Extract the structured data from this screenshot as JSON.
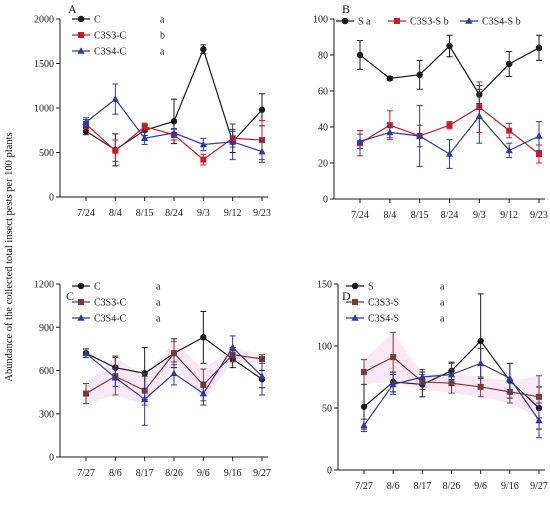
{
  "figure": {
    "ylabel": "Abundance of the collected total insect pests per 100 plants"
  },
  "colors": {
    "black": "#1a1a1a",
    "red": "#c0202a",
    "blue": "#2d3a9e",
    "brown": "#7a3b33",
    "pink_shade": "#f6d6ee"
  },
  "chart_data": [
    {
      "type": "line",
      "panel_label": "A",
      "categories": [
        "7/24",
        "8/4",
        "8/15",
        "8/24",
        "9/3",
        "9/12",
        "9/23"
      ],
      "ylim": [
        0,
        2000
      ],
      "yticks": [
        0,
        500,
        1000,
        1500,
        2000
      ],
      "legend_position": "top-left",
      "series": [
        {
          "name": "C",
          "letter": "a",
          "color": "#1a1a1a",
          "marker": "circle",
          "values": [
            740,
            530,
            750,
            850,
            1660,
            620,
            980
          ],
          "errors": [
            40,
            180,
            60,
            250,
            50,
            120,
            180
          ]
        },
        {
          "name": "C3S3-C",
          "letter": "b",
          "color": "#c0202a",
          "marker": "square",
          "values": [
            820,
            520,
            790,
            700,
            420,
            660,
            640
          ],
          "errors": [
            50,
            120,
            40,
            60,
            60,
            100,
            220
          ]
        },
        {
          "name": "C3S4-C",
          "letter": "a",
          "color": "#2d3a9e",
          "marker": "triangle",
          "values": [
            840,
            1100,
            660,
            720,
            590,
            620,
            510
          ],
          "errors": [
            50,
            170,
            70,
            50,
            70,
            200,
            120
          ]
        }
      ]
    },
    {
      "type": "line",
      "panel_label": "B",
      "categories": [
        "7/24",
        "8/4",
        "8/15",
        "8/24",
        "9/3",
        "9/12",
        "9/23"
      ],
      "ylim": [
        0,
        100
      ],
      "yticks": [
        0,
        20,
        40,
        60,
        80,
        100
      ],
      "legend_position": "top",
      "series": [
        {
          "name": "S",
          "letter": "a",
          "color": "#1a1a1a",
          "marker": "circle",
          "values": [
            80,
            67,
            69,
            85,
            58,
            75,
            84
          ],
          "errors": [
            8,
            1,
            8,
            6,
            5,
            7,
            7
          ]
        },
        {
          "name": "C3S3-S",
          "letter": "b",
          "color": "#c0202a",
          "marker": "square",
          "values": [
            31,
            41,
            35,
            41,
            51,
            38,
            25
          ],
          "errors": [
            7,
            8,
            6,
            2,
            14,
            4,
            5
          ]
        },
        {
          "name": "C3S4-S",
          "letter": "b",
          "color": "#2d3a9e",
          "marker": "triangle",
          "values": [
            32,
            37,
            35,
            25,
            46,
            27,
            35
          ],
          "errors": [
            4,
            3,
            17,
            8,
            15,
            4,
            8
          ]
        }
      ]
    },
    {
      "type": "line",
      "panel_label": "C",
      "categories": [
        "7/27",
        "8/6",
        "8/17",
        "8/26",
        "9/6",
        "9/16",
        "9/27"
      ],
      "ylim": [
        0,
        1200
      ],
      "yticks": [
        0,
        300,
        600,
        900,
        1200
      ],
      "legend_position": "top-left",
      "series": [
        {
          "name": "C",
          "letter": "a",
          "color": "#1a1a1a",
          "marker": "circle",
          "values": [
            720,
            620,
            580,
            720,
            830,
            680,
            540
          ],
          "errors": [
            30,
            80,
            180,
            100,
            180,
            60,
            60
          ]
        },
        {
          "name": "C3S3-C",
          "letter": "a",
          "color": "#7a3b33",
          "marker": "square",
          "values": [
            440,
            560,
            460,
            720,
            500,
            710,
            680
          ],
          "errors": [
            70,
            130,
            100,
            80,
            110,
            50,
            30
          ]
        },
        {
          "name": "C3S4-C",
          "letter": "a",
          "color": "#2d3a9e",
          "marker": "triangle",
          "values": [
            720,
            550,
            400,
            580,
            440,
            760,
            560
          ],
          "errors": [
            30,
            60,
            180,
            80,
            80,
            80,
            130
          ]
        }
      ]
    },
    {
      "type": "line",
      "panel_label": "D",
      "categories": [
        "7/27",
        "8/6",
        "8/17",
        "8/26",
        "9/6",
        "9/16",
        "9/27"
      ],
      "ylim": [
        0,
        150
      ],
      "yticks": [
        0,
        50,
        100,
        150
      ],
      "legend_position": "top-left",
      "series": [
        {
          "name": "S",
          "letter": "a",
          "color": "#1a1a1a",
          "marker": "circle",
          "values": [
            51,
            71,
            69,
            80,
            104,
            72,
            50
          ],
          "errors": [
            18,
            8,
            10,
            7,
            38,
            14,
            17
          ]
        },
        {
          "name": "C3S3-S",
          "letter": "a",
          "color": "#7a3b33",
          "marker": "square",
          "values": [
            79,
            91,
            71,
            70,
            67,
            63,
            59
          ],
          "errors": [
            10,
            20,
            6,
            8,
            8,
            9,
            17
          ]
        },
        {
          "name": "C3S4-S",
          "letter": "a",
          "color": "#2d3a9e",
          "marker": "triangle",
          "values": [
            36,
            69,
            75,
            77,
            86,
            74,
            40
          ],
          "errors": [
            5,
            8,
            6,
            9,
            12,
            12,
            14
          ]
        }
      ]
    }
  ]
}
